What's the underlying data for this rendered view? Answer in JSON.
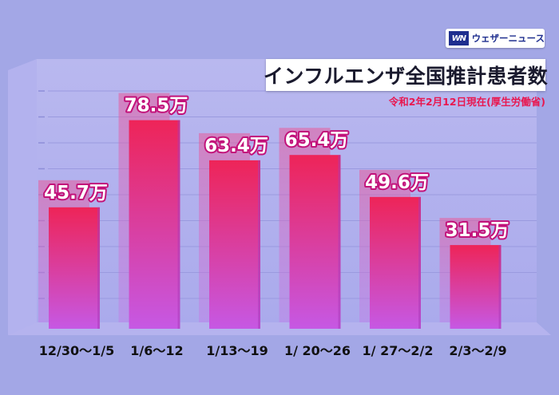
{
  "brand": {
    "logo_mark": "WN",
    "name": "ウェザーニュース"
  },
  "chart_data": {
    "type": "bar",
    "title": "インフルエンザ全国推計患者数",
    "subtitle": "令和2年2月12日現在(厚生労働省)",
    "categories": [
      "12/30〜1/5",
      "1/6〜12",
      "1/13〜19",
      "1/ 20〜26",
      "1/ 27〜2/2",
      "2/3〜2/9"
    ],
    "values": [
      45.7,
      78.5,
      63.4,
      65.4,
      49.6,
      31.5
    ],
    "value_labels": [
      "45.7万",
      "78.5万",
      "63.4万",
      "65.4万",
      "49.6万",
      "31.5万"
    ],
    "unit": "万",
    "xlabel": "",
    "ylabel": "",
    "ylim": [
      0,
      100
    ],
    "grid": true,
    "legend": "none",
    "colors": {
      "background": "#a3a7e6",
      "bar_top": "#ee2458",
      "bar_bottom": "#c658e4",
      "label": "#ffffff",
      "label_outline": "#c2127a"
    }
  }
}
